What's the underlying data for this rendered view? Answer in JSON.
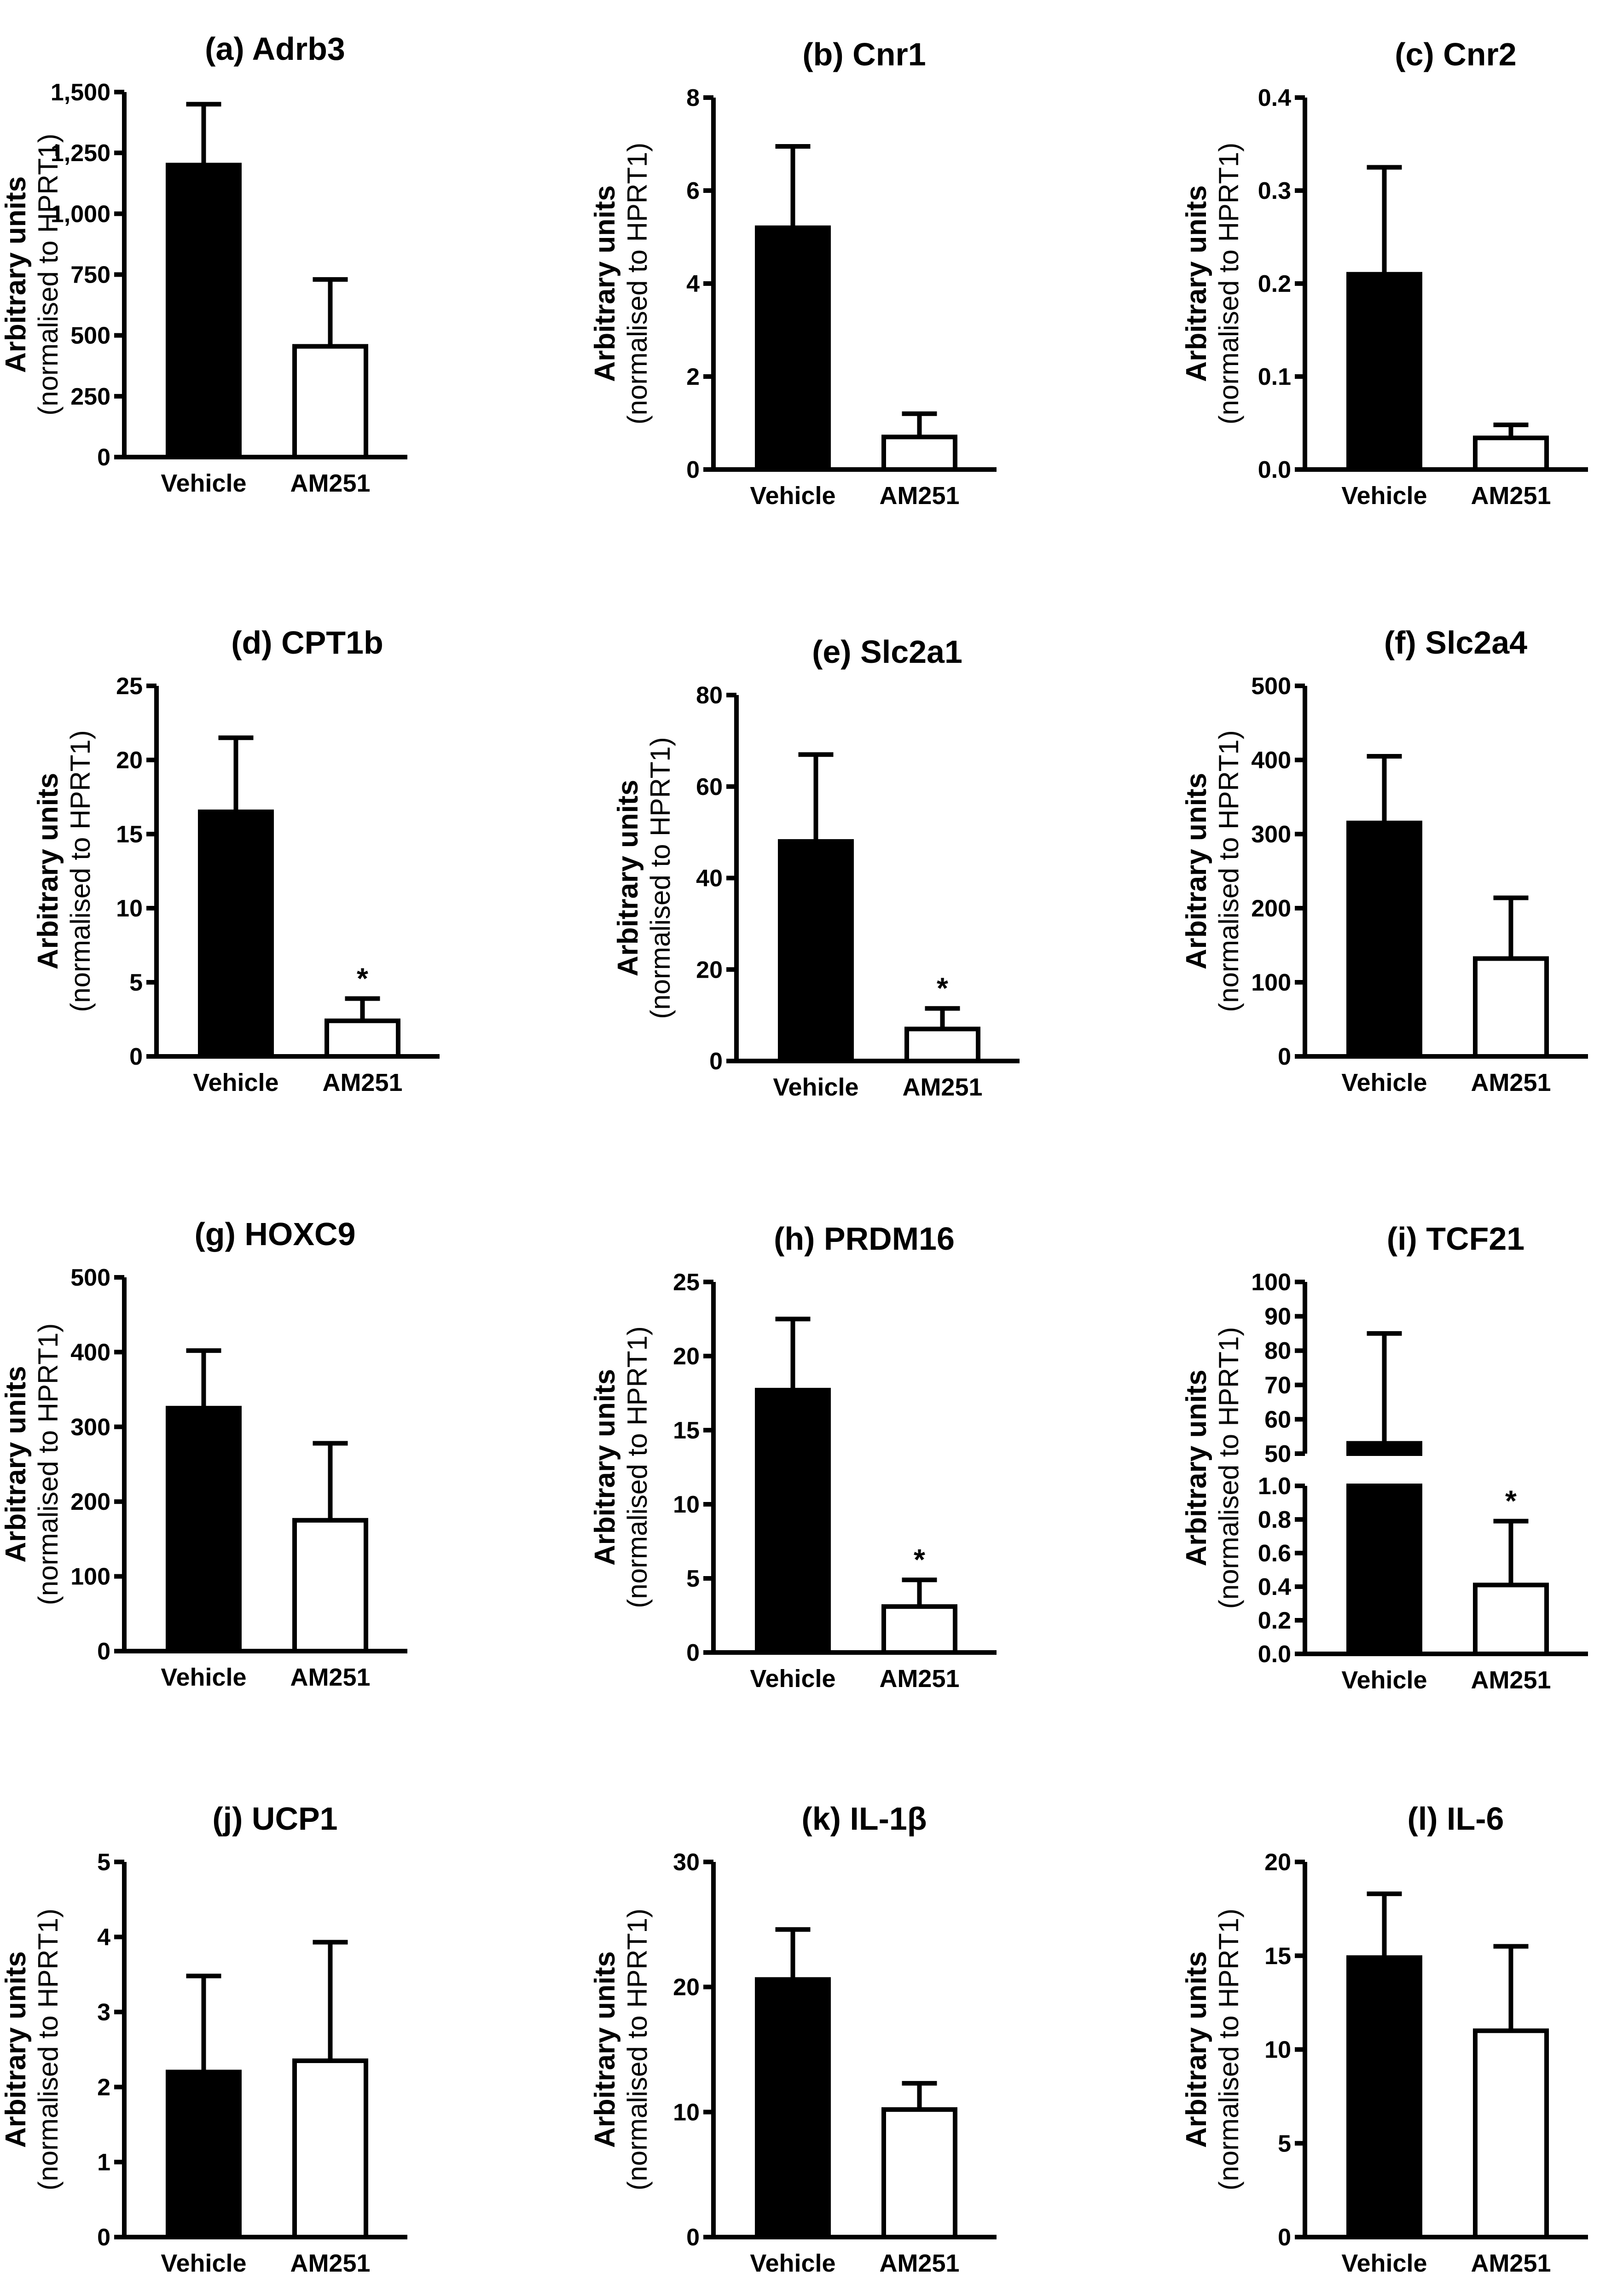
{
  "figure": {
    "common": {
      "ylabel_line1": "Arbitrary units",
      "ylabel_line2": "(normalised to HPRT1)"
    }
  },
  "chart_data": [
    {
      "type": "bar",
      "title": "(a) Adrb3",
      "categories": [
        "Vehicle",
        "AM251"
      ],
      "values": [
        1200,
        455
      ],
      "errors": [
        250,
        275
      ],
      "ylim": [
        0,
        1500
      ],
      "ticks": [
        0,
        250,
        500,
        750,
        1000,
        1250,
        1500
      ],
      "tick_labels": [
        "0",
        "250",
        "500",
        "750",
        "1,000",
        "1,250",
        "1,500"
      ],
      "significance": [
        null,
        null
      ],
      "xlabel": "",
      "ylabel": "Arbitrary units (normalised to HPRT1)",
      "fills": [
        "#000000",
        "#ffffff"
      ]
    },
    {
      "type": "bar",
      "title": "(b) Cnr1",
      "categories": [
        "Vehicle",
        "AM251"
      ],
      "values": [
        5.2,
        0.7
      ],
      "errors": [
        1.75,
        0.5
      ],
      "ylim": [
        0,
        8
      ],
      "ticks": [
        0,
        2,
        4,
        6,
        8
      ],
      "tick_labels": [
        "0",
        "2",
        "4",
        "6",
        "8"
      ],
      "significance": [
        null,
        null
      ],
      "xlabel": "",
      "ylabel": "Arbitrary units (normalised to HPRT1)",
      "fills": [
        "#000000",
        "#ffffff"
      ]
    },
    {
      "type": "bar",
      "title": "(c) Cnr2",
      "categories": [
        "Vehicle",
        "AM251"
      ],
      "values": [
        0.21,
        0.034
      ],
      "errors": [
        0.115,
        0.014
      ],
      "ylim": [
        0,
        0.4
      ],
      "ticks": [
        0,
        0.1,
        0.2,
        0.3,
        0.4
      ],
      "tick_labels": [
        "0.0",
        "0.1",
        "0.2",
        "0.3",
        "0.4"
      ],
      "significance": [
        null,
        null
      ],
      "xlabel": "",
      "ylabel": "Arbitrary units (normalised to HPRT1)",
      "fills": [
        "#000000",
        "#ffffff"
      ]
    },
    {
      "type": "bar",
      "title": "(d) CPT1b",
      "categories": [
        "Vehicle",
        "AM251"
      ],
      "values": [
        16.5,
        2.4
      ],
      "errors": [
        5,
        1.5
      ],
      "ylim": [
        0,
        25
      ],
      "ticks": [
        0,
        5,
        10,
        15,
        20,
        25
      ],
      "tick_labels": [
        "0",
        "5",
        "10",
        "15",
        "20",
        "25"
      ],
      "significance": [
        null,
        "*"
      ],
      "xlabel": "",
      "ylabel": "Arbitrary units (normalised to HPRT1)",
      "fills": [
        "#000000",
        "#ffffff"
      ]
    },
    {
      "type": "bar",
      "title": "(e) Slc2a1",
      "categories": [
        "Vehicle",
        "AM251"
      ],
      "values": [
        48,
        7
      ],
      "errors": [
        19,
        4.5
      ],
      "ylim": [
        0,
        80
      ],
      "ticks": [
        0,
        20,
        40,
        60,
        80
      ],
      "tick_labels": [
        "0",
        "20",
        "40",
        "60",
        "80"
      ],
      "significance": [
        null,
        "*"
      ],
      "xlabel": "",
      "ylabel": "Arbitrary units (normalised to HPRT1)",
      "fills": [
        "#000000",
        "#ffffff"
      ]
    },
    {
      "type": "bar",
      "title": "(f) Slc2a4",
      "categories": [
        "Vehicle",
        "AM251"
      ],
      "values": [
        315,
        132
      ],
      "errors": [
        90,
        82
      ],
      "ylim": [
        0,
        500
      ],
      "ticks": [
        0,
        100,
        200,
        300,
        400,
        500
      ],
      "tick_labels": [
        "0",
        "100",
        "200",
        "300",
        "400",
        "500"
      ],
      "significance": [
        null,
        null
      ],
      "xlabel": "",
      "ylabel": "Arbitrary units (normalised to HPRT1)",
      "fills": [
        "#000000",
        "#ffffff"
      ]
    },
    {
      "type": "bar",
      "title": "(g) HOXC9",
      "categories": [
        "Vehicle",
        "AM251"
      ],
      "values": [
        325,
        175
      ],
      "errors": [
        77,
        103
      ],
      "ylim": [
        0,
        500
      ],
      "ticks": [
        0,
        100,
        200,
        300,
        400,
        500
      ],
      "tick_labels": [
        "0",
        "100",
        "200",
        "300",
        "400",
        "500"
      ],
      "significance": [
        null,
        null
      ],
      "xlabel": "",
      "ylabel": "Arbitrary units (normalised to HPRT1)",
      "fills": [
        "#000000",
        "#ffffff"
      ]
    },
    {
      "type": "bar",
      "title": "(h) PRDM16",
      "categories": [
        "Vehicle",
        "AM251"
      ],
      "values": [
        17.7,
        3.1
      ],
      "errors": [
        4.8,
        1.8
      ],
      "ylim": [
        0,
        25
      ],
      "ticks": [
        0,
        5,
        10,
        15,
        20,
        25
      ],
      "tick_labels": [
        "0",
        "5",
        "10",
        "15",
        "20",
        "25"
      ],
      "significance": [
        null,
        "*"
      ],
      "xlabel": "",
      "ylabel": "Arbitrary units (normalised to HPRT1)",
      "fills": [
        "#000000",
        "#ffffff"
      ]
    },
    {
      "type": "bar",
      "title": "(i) TCF21",
      "categories": [
        "Vehicle",
        "AM251"
      ],
      "values": [
        53,
        0.41
      ],
      "errors": [
        32,
        0.38
      ],
      "ylim": [
        0,
        100
      ],
      "broken_axis": {
        "lower": [
          0,
          1.0
        ],
        "upper": [
          50,
          100
        ]
      },
      "ticks_lower": [
        0,
        0.2,
        0.4,
        0.6,
        0.8,
        1.0
      ],
      "tick_labels_lower": [
        "0.0",
        "0.2",
        "0.4",
        "0.6",
        "0.8",
        "1.0"
      ],
      "ticks_upper": [
        50,
        60,
        70,
        80,
        90,
        100
      ],
      "tick_labels_upper": [
        "50",
        "60",
        "70",
        "80",
        "90",
        "100"
      ],
      "significance": [
        null,
        "*"
      ],
      "xlabel": "",
      "ylabel": "Arbitrary units (normalised to HPRT1)",
      "fills": [
        "#000000",
        "#ffffff"
      ]
    },
    {
      "type": "bar",
      "title": "(j) UCP1",
      "categories": [
        "Vehicle",
        "AM251"
      ],
      "values": [
        2.2,
        2.35
      ],
      "errors": [
        1.28,
        1.58
      ],
      "ylim": [
        0,
        5
      ],
      "ticks": [
        0,
        1,
        2,
        3,
        4,
        5
      ],
      "tick_labels": [
        "0",
        "1",
        "2",
        "3",
        "4",
        "5"
      ],
      "significance": [
        null,
        null
      ],
      "xlabel": "",
      "ylabel": "Arbitrary units (normalised to HPRT1)",
      "fills": [
        "#000000",
        "#ffffff"
      ]
    },
    {
      "type": "bar",
      "title": "(k) IL-1β",
      "categories": [
        "Vehicle",
        "AM251"
      ],
      "values": [
        20.6,
        10.2
      ],
      "errors": [
        4,
        2.1
      ],
      "ylim": [
        0,
        30
      ],
      "ticks": [
        0,
        10,
        20,
        30
      ],
      "tick_labels": [
        "0",
        "10",
        "20",
        "30"
      ],
      "significance": [
        null,
        null
      ],
      "xlabel": "",
      "ylabel": "Arbitrary units (normalised to HPRT1)",
      "fills": [
        "#000000",
        "#ffffff"
      ]
    },
    {
      "type": "bar",
      "title": "(l) IL-6",
      "categories": [
        "Vehicle",
        "AM251"
      ],
      "values": [
        14.9,
        11
      ],
      "errors": [
        3.4,
        4.5
      ],
      "ylim": [
        0,
        20
      ],
      "ticks": [
        0,
        5,
        10,
        15,
        20
      ],
      "tick_labels": [
        "0",
        "5",
        "10",
        "15",
        "20"
      ],
      "significance": [
        null,
        null
      ],
      "xlabel": "",
      "ylabel": "Arbitrary units (normalised to HPRT1)",
      "fills": [
        "#000000",
        "#ffffff"
      ]
    }
  ]
}
